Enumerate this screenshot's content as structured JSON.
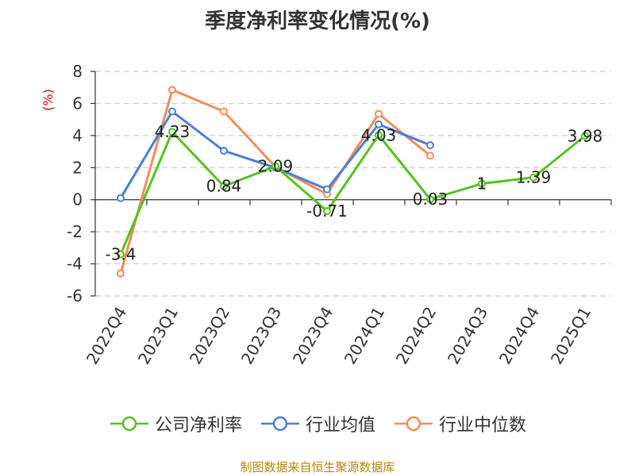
{
  "chart_data": {
    "type": "line",
    "title": "季度净利率变化情况(%)",
    "ylabel": "(%)",
    "ylim": [
      -6,
      8
    ],
    "yticks": [
      -6,
      -4,
      -2,
      0,
      2,
      4,
      6,
      8
    ],
    "grid": true,
    "legend_position": "bottom",
    "categories": [
      "2022Q4",
      "2023Q1",
      "2023Q2",
      "2023Q3",
      "2023Q4",
      "2024Q1",
      "2024Q2",
      "2024Q3",
      "2024Q4",
      "2025Q1"
    ],
    "series": [
      {
        "name": "公司净利率",
        "color": "#52c41a",
        "values": [
          -3.4,
          4.23,
          0.84,
          2.09,
          -0.71,
          4.03,
          0.03,
          1,
          1.39,
          3.98
        ],
        "labels": [
          "-3.4",
          "4.23",
          "0.84",
          "2.09",
          "-0.71",
          "4.03",
          "0.03",
          "1",
          "1.39",
          "3.98"
        ]
      },
      {
        "name": "行业均值",
        "color": "#4a7fd8",
        "values": [
          0.1,
          5.5,
          3.05,
          2.0,
          0.65,
          4.7,
          3.4,
          null,
          null,
          null
        ]
      },
      {
        "name": "行业中位数",
        "color": "#f58b5a",
        "values": [
          -4.6,
          6.85,
          5.5,
          2.05,
          0.35,
          5.35,
          2.75,
          null,
          null,
          null
        ]
      }
    ],
    "source": "制图数据来自恒生聚源数据库"
  }
}
